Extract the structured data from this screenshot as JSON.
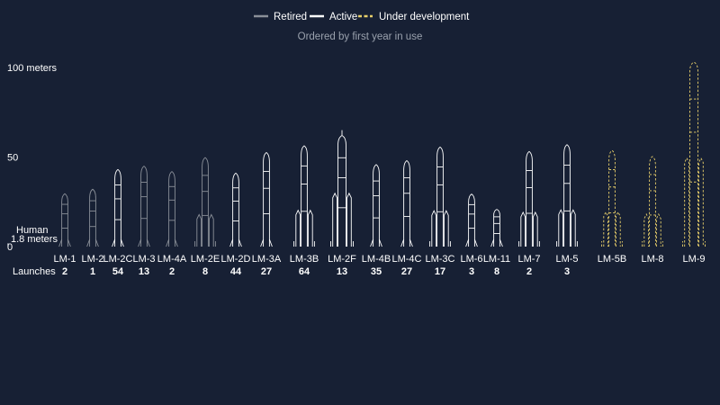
{
  "legend": {
    "items": [
      {
        "label": "Retired",
        "color": "#8a8f98",
        "style": "solid"
      },
      {
        "label": "Active",
        "color": "#ffffff",
        "style": "solid"
      },
      {
        "label": "Under development",
        "color": "#e8cf6a",
        "style": "dashed"
      }
    ]
  },
  "subtitle": "Ordered by first year in use",
  "chart_data": {
    "type": "bar",
    "title": "",
    "subtitle": "Ordered by first year in use",
    "y_unit": "meters",
    "ylim": [
      0,
      100
    ],
    "y_ticks": [
      {
        "value": 0,
        "label": "0"
      },
      {
        "value": 50,
        "label": "50"
      },
      {
        "value": 100,
        "label": "100 meters"
      }
    ],
    "legend_position": "top-center",
    "human": {
      "label": "Human",
      "height_label": "1.8 meters",
      "height": 1.8
    },
    "launches_label": "Launches",
    "rockets": [
      {
        "name": "LM-1",
        "height": 29.5,
        "launches": "2",
        "status": "retired",
        "type": "single"
      },
      {
        "name": "LM-2",
        "height": 32,
        "launches": "1",
        "status": "retired",
        "type": "single"
      },
      {
        "name": "LM-2C",
        "height": 43,
        "launches": "54",
        "status": "active",
        "type": "single"
      },
      {
        "name": "LM-3",
        "height": 44.9,
        "launches": "13",
        "status": "retired",
        "type": "single"
      },
      {
        "name": "LM-4A",
        "height": 41.9,
        "launches": "2",
        "status": "retired",
        "type": "single"
      },
      {
        "name": "LM-2E",
        "height": 49.7,
        "launches": "8",
        "status": "retired",
        "type": "boosted"
      },
      {
        "name": "LM-2D",
        "height": 41,
        "launches": "44",
        "status": "active",
        "type": "single"
      },
      {
        "name": "LM-3A",
        "height": 52.5,
        "launches": "27",
        "status": "active",
        "type": "single"
      },
      {
        "name": "LM-3B",
        "height": 56.3,
        "launches": "64",
        "status": "active",
        "type": "boosted"
      },
      {
        "name": "LM-2F",
        "height": 62,
        "launches": "13",
        "status": "active",
        "type": "boosted"
      },
      {
        "name": "LM-4B",
        "height": 45.8,
        "launches": "35",
        "status": "active",
        "type": "single"
      },
      {
        "name": "LM-4C",
        "height": 48,
        "launches": "27",
        "status": "active",
        "type": "single"
      },
      {
        "name": "LM-3C",
        "height": 55.6,
        "launches": "17",
        "status": "active",
        "type": "boosted"
      },
      {
        "name": "LM-6",
        "height": 29.3,
        "launches": "3",
        "status": "active",
        "type": "single"
      },
      {
        "name": "LM-11",
        "height": 20.8,
        "launches": "8",
        "status": "active",
        "type": "single"
      },
      {
        "name": "LM-7",
        "height": 53.1,
        "launches": "2",
        "status": "active",
        "type": "boosted"
      },
      {
        "name": "LM-5",
        "height": 56.9,
        "launches": "3",
        "status": "active",
        "type": "boosted"
      },
      {
        "name": "LM-5B",
        "height": 53.7,
        "launches": "",
        "status": "development",
        "type": "boosted"
      },
      {
        "name": "LM-8",
        "height": 50.3,
        "launches": "",
        "status": "development",
        "type": "boosted"
      },
      {
        "name": "LM-9",
        "height": 103,
        "launches": "",
        "status": "development",
        "type": "boosted"
      }
    ]
  }
}
